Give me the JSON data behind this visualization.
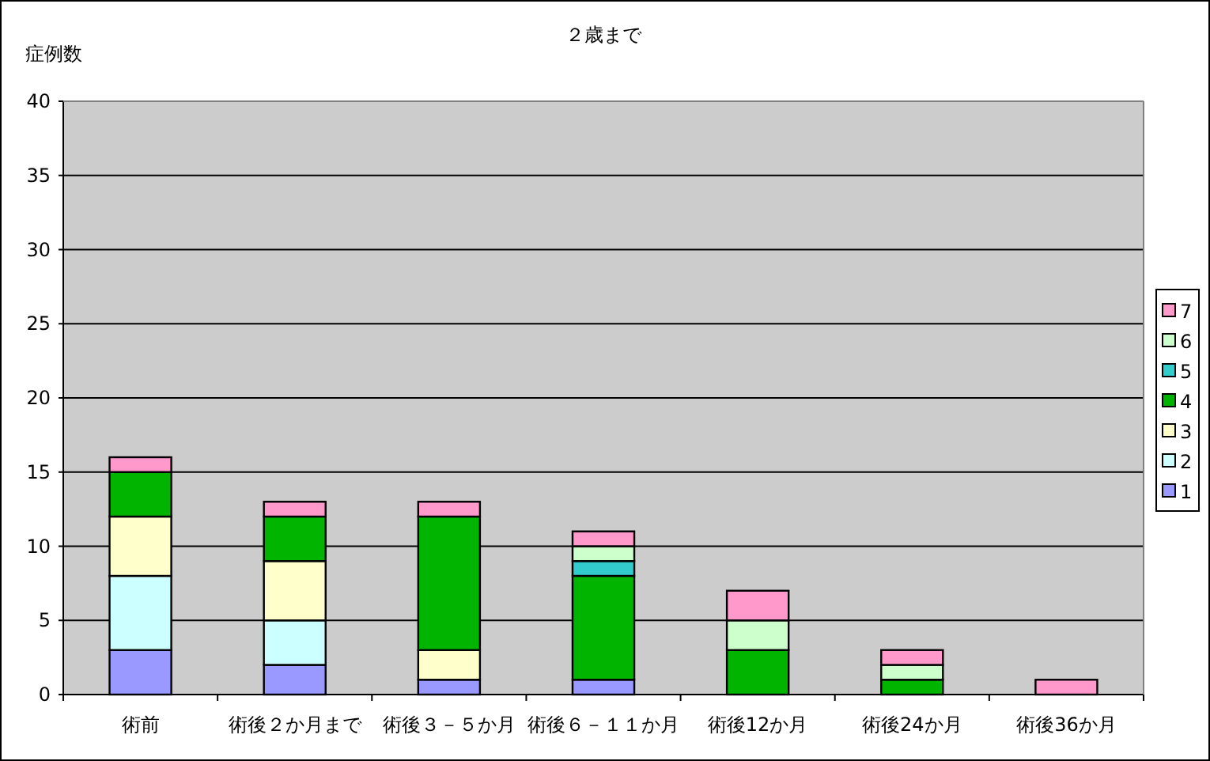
{
  "chart_data": {
    "type": "bar",
    "title": "２歳まで",
    "ylabel": "症例数",
    "stacked": true,
    "categories": [
      "術前",
      "術後２か月まで",
      "術後３－５か月",
      "術後６－１１か月",
      "術後12か月",
      "術後24か月",
      "術後36か月"
    ],
    "series": [
      {
        "name": "1",
        "color": "#9999ff",
        "values": [
          3,
          2,
          1,
          1,
          0,
          0,
          0
        ]
      },
      {
        "name": "2",
        "color": "#ccffff",
        "values": [
          5,
          3,
          0,
          0,
          0,
          0,
          0
        ]
      },
      {
        "name": "3",
        "color": "#ffffcc",
        "values": [
          4,
          4,
          2,
          0,
          0,
          0,
          0
        ]
      },
      {
        "name": "4",
        "color": "#00b400",
        "values": [
          3,
          3,
          9,
          7,
          3,
          1,
          0
        ]
      },
      {
        "name": "5",
        "color": "#33cccc",
        "values": [
          0,
          0,
          0,
          1,
          0,
          0,
          0
        ]
      },
      {
        "name": "6",
        "color": "#ccffcc",
        "values": [
          0,
          0,
          0,
          1,
          2,
          1,
          0
        ]
      },
      {
        "name": "7",
        "color": "#ff99cc",
        "values": [
          1,
          1,
          1,
          1,
          2,
          1,
          1
        ]
      }
    ],
    "ylim": [
      0,
      40
    ],
    "yticks": [
      0,
      5,
      10,
      15,
      20,
      25,
      30,
      35,
      40
    ],
    "grid": "y",
    "legend": "right"
  }
}
